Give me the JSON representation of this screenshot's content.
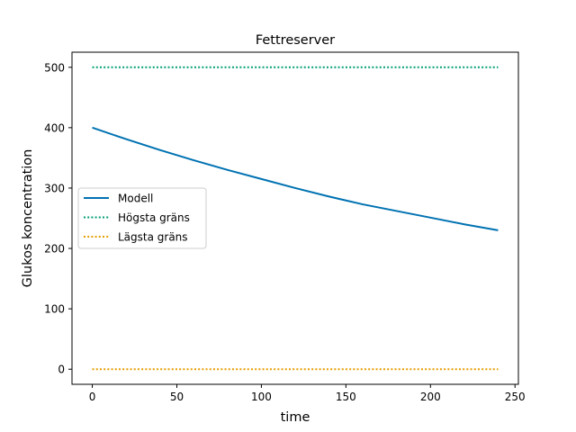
{
  "chart_data": {
    "type": "line",
    "title": "Fettreserver",
    "xlabel": "time",
    "ylabel": "Glukos koncentration",
    "xlim": [
      -12,
      252
    ],
    "ylim": [
      -25,
      525
    ],
    "xticks": [
      0,
      50,
      100,
      150,
      200,
      250
    ],
    "yticks": [
      0,
      100,
      200,
      300,
      400,
      500
    ],
    "grid": false,
    "legend_position": "center-left",
    "series": [
      {
        "name": "Modell",
        "style": "solid",
        "color": "#0072B2",
        "x": [
          0,
          20,
          40,
          60,
          80,
          100,
          120,
          140,
          160,
          180,
          200,
          220,
          240
        ],
        "y": [
          400,
          381,
          363,
          346,
          330,
          315,
          300,
          286,
          273,
          262,
          251,
          240,
          230
        ]
      },
      {
        "name": "Högsta gräns",
        "style": "dotted",
        "color": "#009E73",
        "x": [
          0,
          240
        ],
        "y": [
          500,
          500
        ]
      },
      {
        "name": "Lägsta gräns",
        "style": "dotted",
        "color": "#E69F00",
        "x": [
          0,
          240
        ],
        "y": [
          0,
          0
        ]
      }
    ]
  }
}
